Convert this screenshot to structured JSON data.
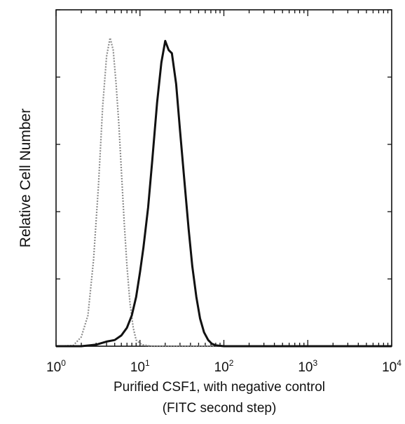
{
  "chart_data": {
    "type": "line",
    "chart_kind": "flow cytometry histogram overlay",
    "title": "",
    "xlabel": "Purified CSF1, with negative control",
    "xlabel_line2": "(FITC second step)",
    "ylabel": "Relative Cell Number",
    "x_scale": "log",
    "xlim": [
      1,
      10000
    ],
    "ylim": [
      0,
      1
    ],
    "x_ticks": [
      {
        "base": "10",
        "exp": "0",
        "value": 1
      },
      {
        "base": "10",
        "exp": "1",
        "value": 10
      },
      {
        "base": "10",
        "exp": "2",
        "value": 100
      },
      {
        "base": "10",
        "exp": "3",
        "value": 1000
      },
      {
        "base": "10",
        "exp": "4",
        "value": 10000
      }
    ],
    "grid": false,
    "legend": "none",
    "series": [
      {
        "style": "light-gray dotted",
        "color": "#8c8c8c",
        "x": [
          1.0,
          1.6,
          2.0,
          2.4,
          2.8,
          3.2,
          3.6,
          4.0,
          4.4,
          4.8,
          5.2,
          5.6,
          6.0,
          6.5,
          7.0,
          7.6,
          8.3,
          9.0,
          10.5,
          14,
          20,
          100,
          10000
        ],
        "y": [
          0.0,
          0.002,
          0.03,
          0.1,
          0.28,
          0.52,
          0.78,
          0.94,
          1.0,
          0.96,
          0.85,
          0.72,
          0.57,
          0.4,
          0.26,
          0.14,
          0.06,
          0.02,
          0.005,
          0.0,
          0.0,
          0.0,
          0.0
        ]
      },
      {
        "style": "dark solid",
        "color": "#111111",
        "x": [
          1.0,
          2.0,
          3.0,
          4.0,
          5.0,
          6.0,
          7.0,
          8.0,
          9.0,
          10.0,
          11.0,
          12.5,
          14.0,
          16.0,
          18.0,
          20.0,
          22.0,
          24.0,
          27.0,
          30.0,
          34.0,
          38.0,
          42.0,
          47.0,
          52.0,
          58.0,
          65.0,
          72.0,
          80.0,
          100.0,
          10000.0
        ],
        "y": [
          0.0,
          0.0,
          0.005,
          0.015,
          0.02,
          0.035,
          0.06,
          0.1,
          0.16,
          0.24,
          0.32,
          0.45,
          0.6,
          0.79,
          0.92,
          0.99,
          0.96,
          0.95,
          0.85,
          0.7,
          0.53,
          0.38,
          0.26,
          0.16,
          0.09,
          0.045,
          0.02,
          0.008,
          0.003,
          0.0,
          0.0
        ]
      }
    ]
  }
}
